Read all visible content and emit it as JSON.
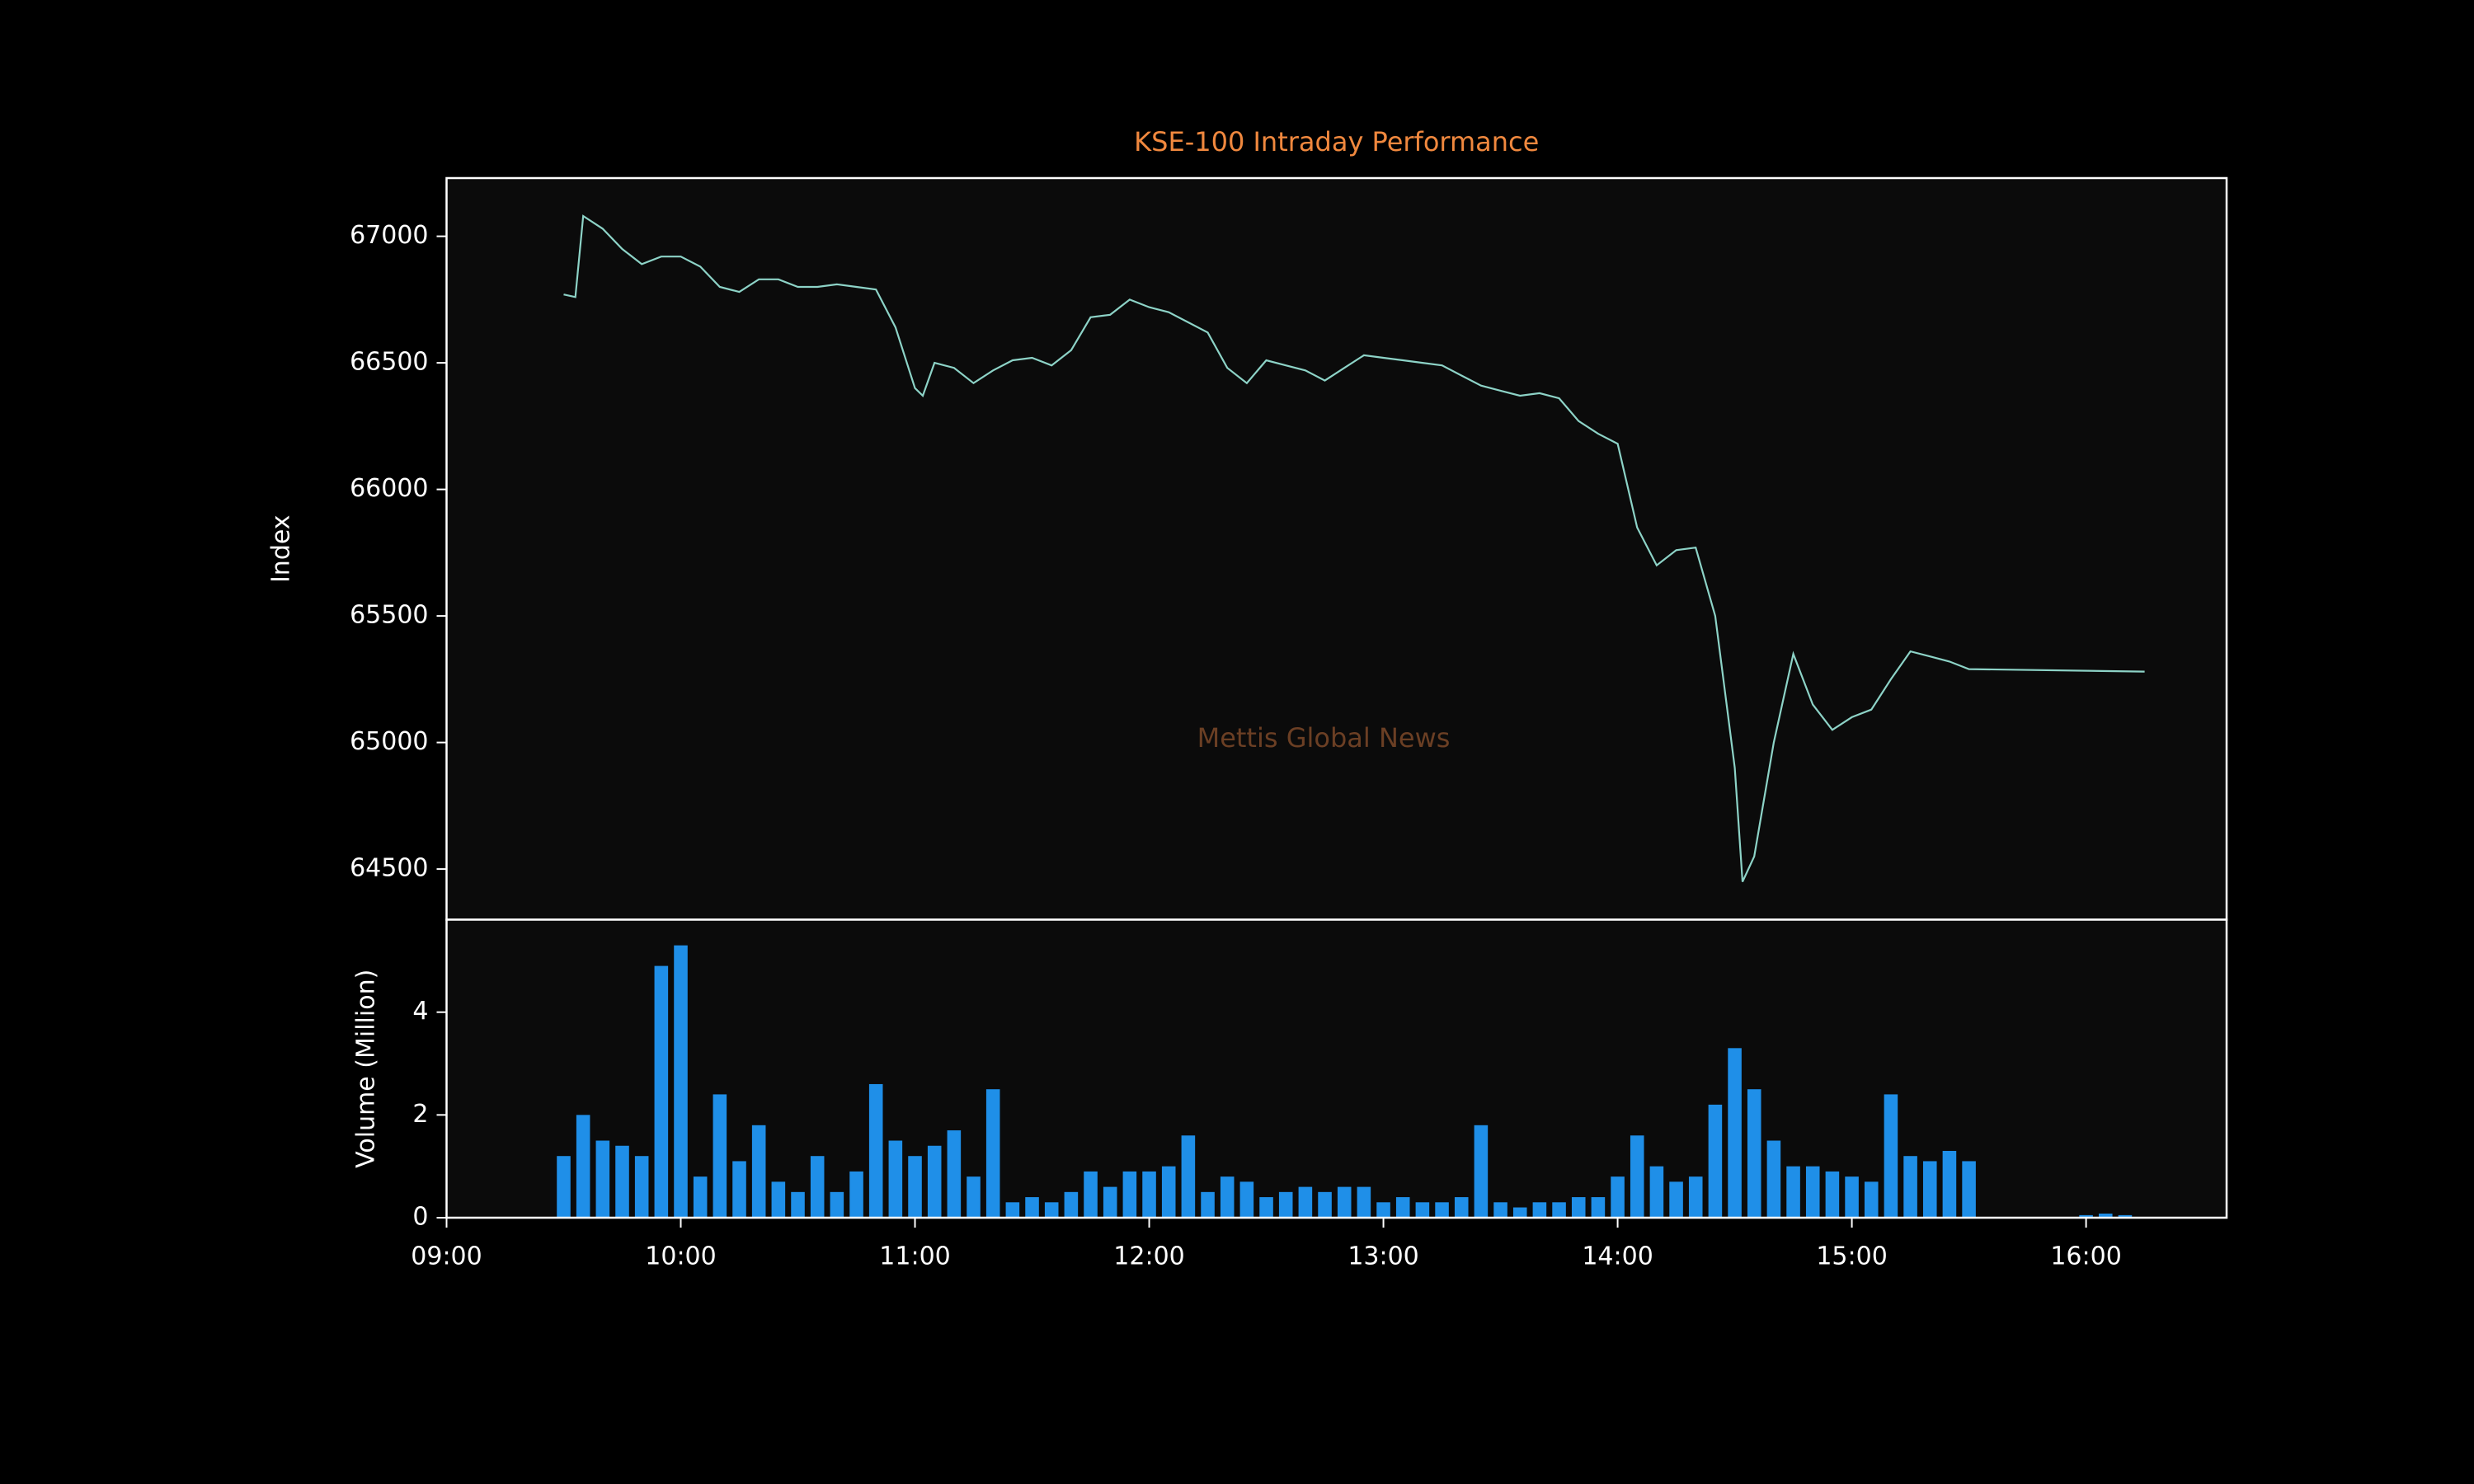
{
  "chart_data": [
    {
      "type": "line",
      "title": "KSE-100 Intraday Performance",
      "ylabel": "Index",
      "annotation": "Mettis Global News",
      "color": "#8dd3c7",
      "x": [
        "09:30",
        "09:33",
        "09:35",
        "09:40",
        "09:45",
        "09:50",
        "09:55",
        "10:00",
        "10:05",
        "10:10",
        "10:15",
        "10:20",
        "10:25",
        "10:30",
        "10:35",
        "10:40",
        "10:45",
        "10:50",
        "10:55",
        "11:00",
        "11:02",
        "11:05",
        "11:10",
        "11:15",
        "11:20",
        "11:25",
        "11:30",
        "11:35",
        "11:40",
        "11:45",
        "11:50",
        "11:55",
        "12:00",
        "12:05",
        "12:10",
        "12:15",
        "12:20",
        "12:25",
        "12:30",
        "12:35",
        "12:40",
        "12:45",
        "12:50",
        "12:55",
        "13:00",
        "13:05",
        "13:10",
        "13:15",
        "13:20",
        "13:25",
        "13:30",
        "13:35",
        "13:40",
        "13:45",
        "13:50",
        "13:55",
        "14:00",
        "14:05",
        "14:10",
        "14:15",
        "14:20",
        "14:25",
        "14:30",
        "14:32",
        "14:35",
        "14:40",
        "14:45",
        "14:50",
        "14:55",
        "15:00",
        "15:05",
        "15:10",
        "15:15",
        "15:20",
        "15:25",
        "15:30",
        "16:15"
      ],
      "values": [
        66770,
        66760,
        67080,
        67030,
        66950,
        66890,
        66920,
        66920,
        66880,
        66800,
        66780,
        66830,
        66830,
        66800,
        66800,
        66810,
        66800,
        66790,
        66640,
        66400,
        66370,
        66500,
        66480,
        66420,
        66470,
        66510,
        66520,
        66490,
        66550,
        66680,
        66690,
        66750,
        66720,
        66700,
        66660,
        66620,
        66480,
        66420,
        66510,
        66490,
        66470,
        66430,
        66480,
        66530,
        66520,
        66510,
        66500,
        66490,
        66450,
        66410,
        66390,
        66370,
        66380,
        66360,
        66270,
        66220,
        66180,
        65850,
        65700,
        65760,
        65770,
        65500,
        64900,
        64450,
        64550,
        65000,
        65350,
        65150,
        65050,
        65100,
        65130,
        65250,
        65360,
        65340,
        65320,
        65290,
        65280
      ],
      "xlim": [
        "09:00",
        "16:36"
      ],
      "ylim": [
        64300,
        67230
      ],
      "yticks": [
        64500,
        65000,
        65500,
        66000,
        66500,
        67000
      ]
    },
    {
      "type": "bar",
      "ylabel": "Volume (Million)",
      "color": "#1f8fe8",
      "x": [
        "09:30",
        "09:35",
        "09:40",
        "09:45",
        "09:50",
        "09:55",
        "10:00",
        "10:05",
        "10:10",
        "10:15",
        "10:20",
        "10:25",
        "10:30",
        "10:35",
        "10:40",
        "10:45",
        "10:50",
        "10:55",
        "11:00",
        "11:05",
        "11:10",
        "11:15",
        "11:20",
        "11:25",
        "11:30",
        "11:35",
        "11:40",
        "11:45",
        "11:50",
        "11:55",
        "12:00",
        "12:05",
        "12:10",
        "12:15",
        "12:20",
        "12:25",
        "12:30",
        "12:35",
        "12:40",
        "12:45",
        "12:50",
        "12:55",
        "13:00",
        "13:05",
        "13:10",
        "13:15",
        "13:20",
        "13:25",
        "13:30",
        "13:35",
        "13:40",
        "13:45",
        "13:50",
        "13:55",
        "14:00",
        "14:05",
        "14:10",
        "14:15",
        "14:20",
        "14:25",
        "14:30",
        "14:35",
        "14:40",
        "14:45",
        "14:50",
        "14:55",
        "15:00",
        "15:05",
        "15:10",
        "15:15",
        "15:20",
        "15:25",
        "15:30",
        "16:00",
        "16:05",
        "16:10"
      ],
      "values": [
        1.2,
        2.0,
        1.5,
        1.4,
        1.2,
        4.9,
        5.3,
        0.8,
        2.4,
        1.1,
        1.8,
        0.7,
        0.5,
        1.2,
        0.5,
        0.9,
        2.6,
        1.5,
        1.2,
        1.4,
        1.7,
        0.8,
        2.5,
        0.3,
        0.4,
        0.3,
        0.5,
        0.9,
        0.6,
        0.9,
        0.9,
        1.0,
        1.6,
        0.5,
        0.8,
        0.7,
        0.4,
        0.5,
        0.6,
        0.5,
        0.6,
        0.6,
        0.3,
        0.4,
        0.3,
        0.3,
        0.4,
        1.8,
        0.3,
        0.2,
        0.3,
        0.3,
        0.4,
        0.4,
        0.8,
        1.6,
        1.0,
        0.7,
        0.8,
        2.2,
        3.3,
        2.5,
        1.5,
        1.0,
        1.0,
        0.9,
        0.8,
        0.7,
        2.4,
        1.2,
        1.1,
        1.3,
        1.1,
        0.05,
        0.08,
        0.05
      ],
      "xlim": [
        "09:00",
        "16:36"
      ],
      "ylim": [
        0,
        5.8
      ],
      "yticks": [
        0,
        2,
        4
      ],
      "xticks": [
        "09:00",
        "10:00",
        "11:00",
        "12:00",
        "13:00",
        "14:00",
        "15:00",
        "16:00"
      ]
    }
  ]
}
